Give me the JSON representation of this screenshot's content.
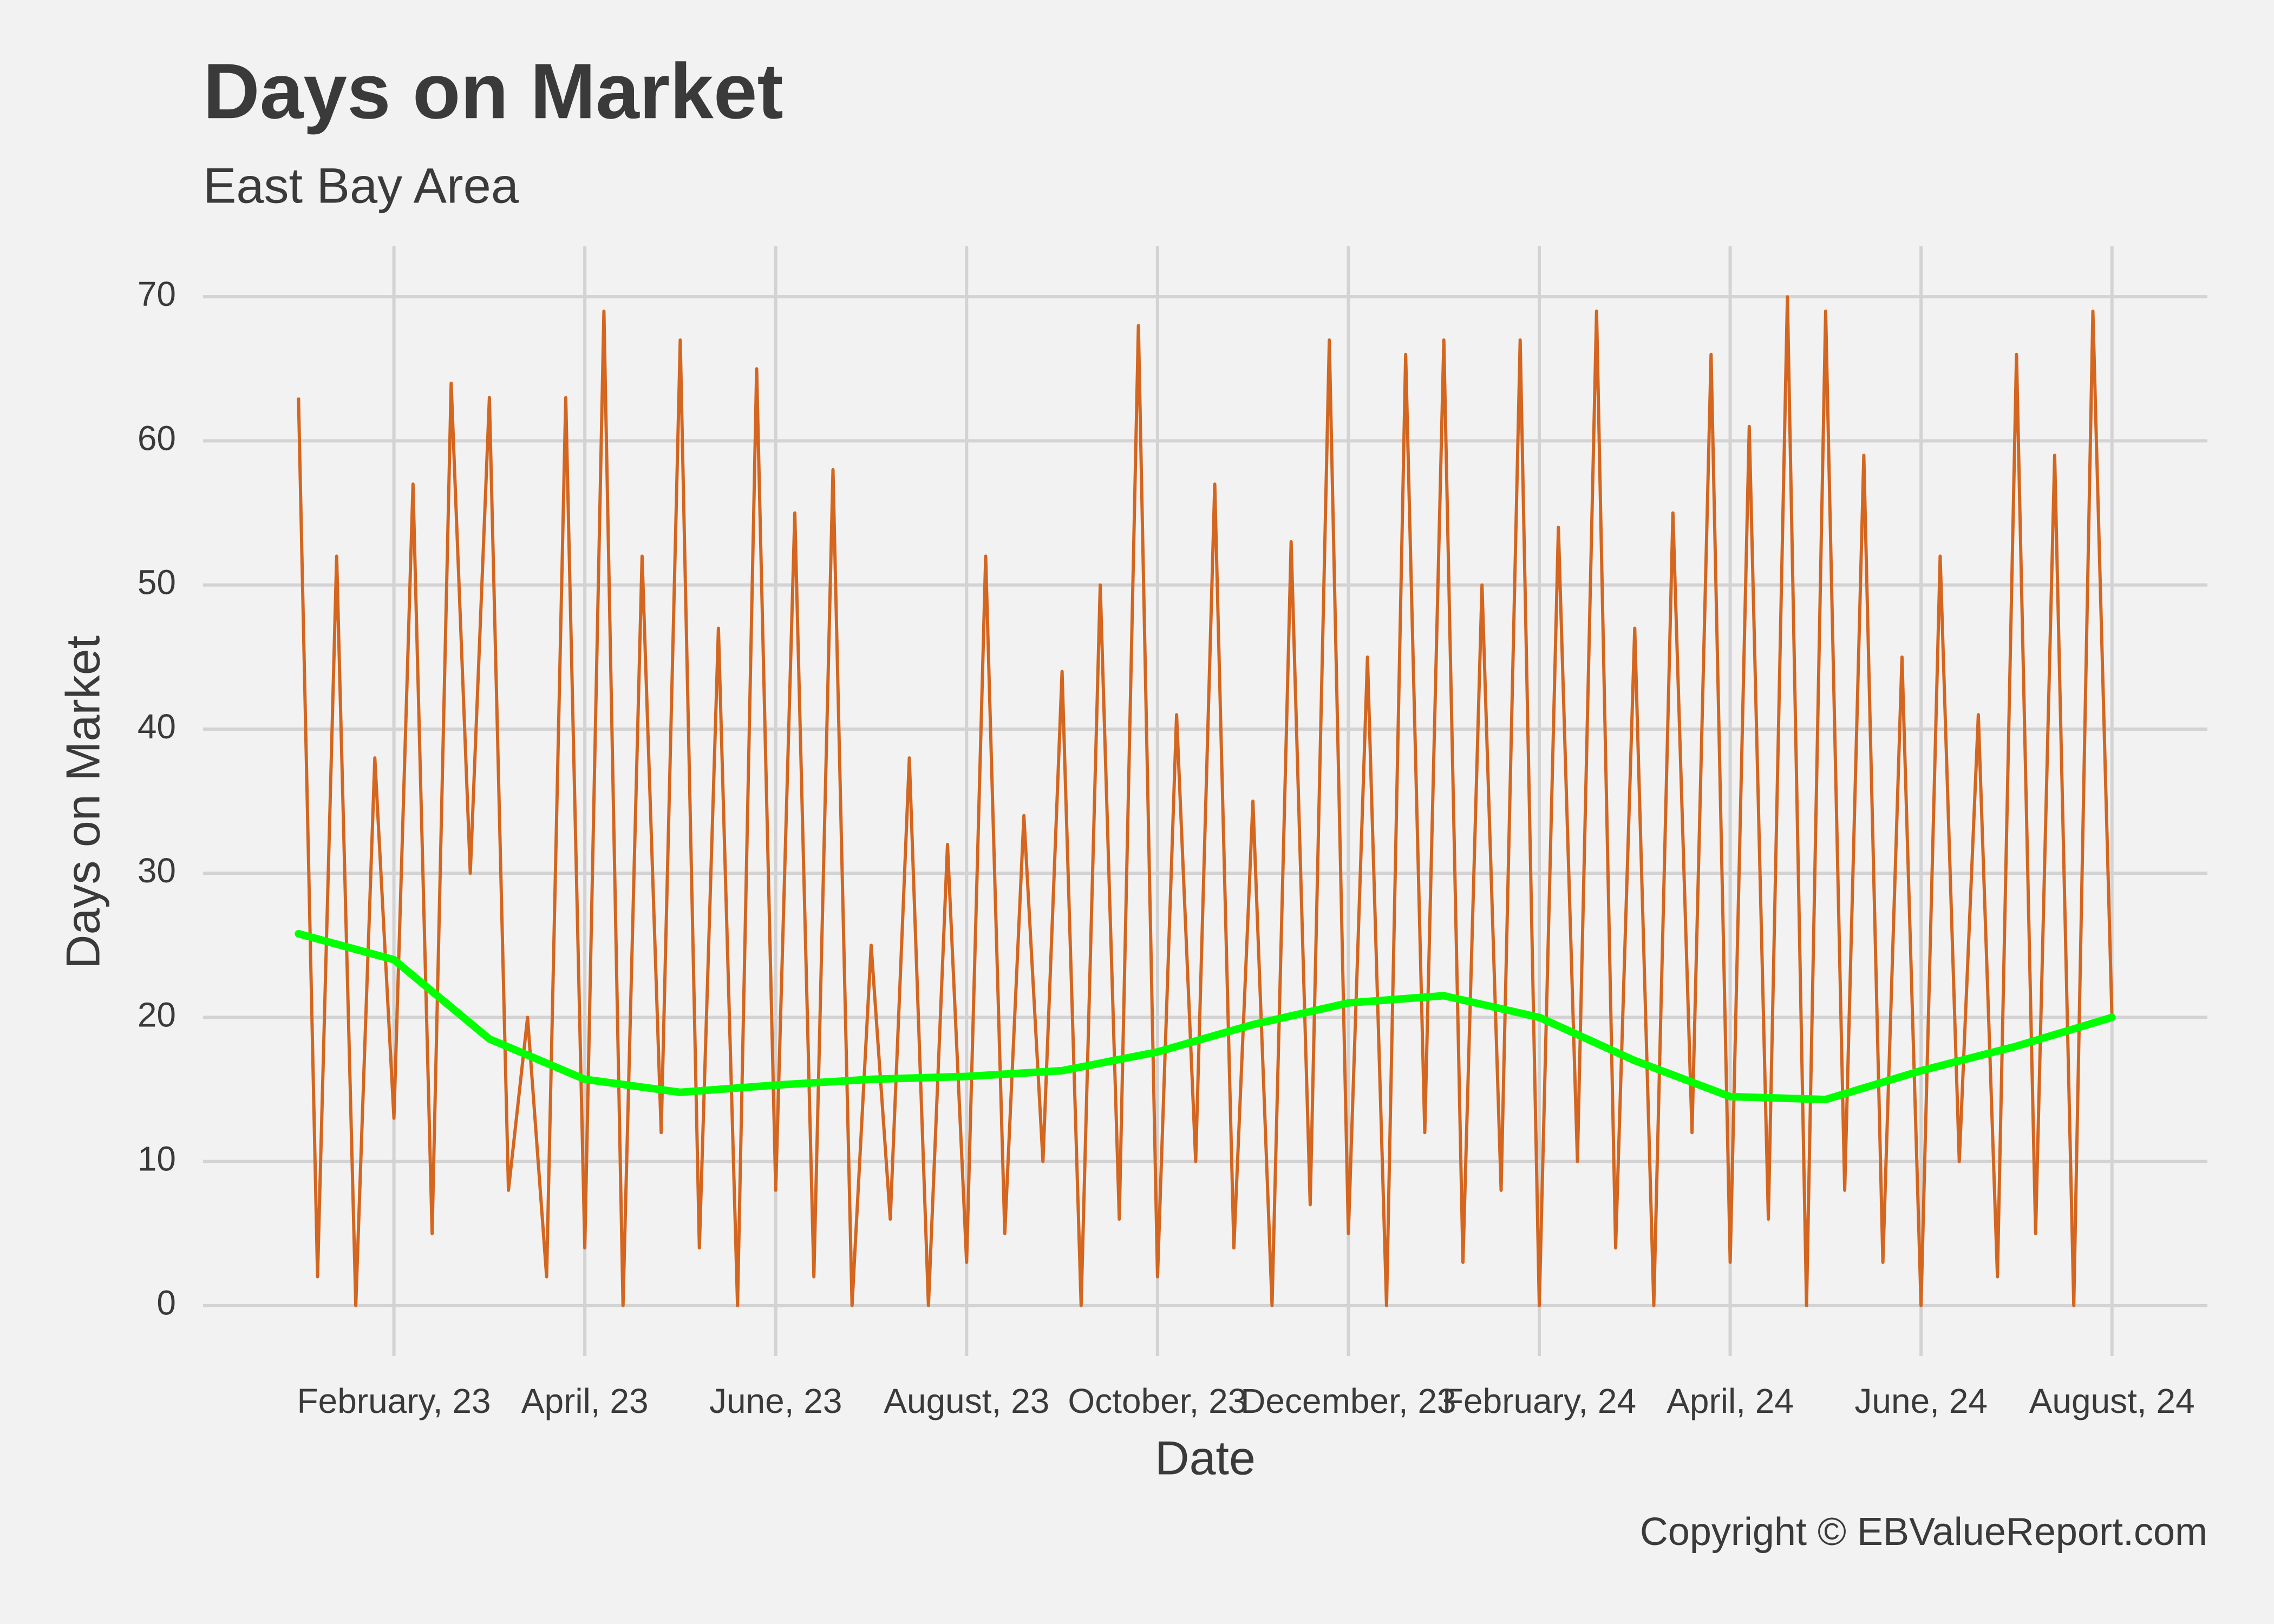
{
  "chart_data": {
    "type": "line",
    "title": "Days on Market",
    "subtitle": "East Bay Area",
    "x_label": "Date",
    "y_label": "Days on Market",
    "caption": "Copyright  © EBValueReport.com",
    "x": [
      1,
      1.2,
      1.4,
      1.6,
      1.8,
      2,
      2.2,
      2.4,
      2.6,
      2.8,
      3,
      3.2,
      3.4,
      3.6,
      3.8,
      4,
      4.2,
      4.4,
      4.6,
      4.8,
      5,
      5.2,
      5.4,
      5.6,
      5.8,
      6,
      6.2,
      6.4,
      6.6,
      6.8,
      7,
      7.2,
      7.4,
      7.6,
      7.8,
      8,
      8.2,
      8.4,
      8.6,
      8.8,
      9,
      9.2,
      9.4,
      9.6,
      9.8,
      10,
      10.2,
      10.4,
      10.6,
      10.8,
      11,
      11.2,
      11.4,
      11.6,
      11.8,
      12,
      12.2,
      12.4,
      12.6,
      12.8,
      13,
      13.2,
      13.4,
      13.6,
      13.8,
      14,
      14.2,
      14.4,
      14.6,
      14.8,
      15,
      15.2,
      15.4,
      15.6,
      15.8,
      16,
      16.2,
      16.4,
      16.6,
      16.8,
      17,
      17.2,
      17.4,
      17.6,
      17.8,
      18,
      18.2,
      18.4,
      18.6,
      18.8,
      19,
      19.2,
      19.4,
      19.6,
      19.8,
      20
    ],
    "values": [
      63,
      2,
      52,
      0,
      38,
      13,
      57,
      5,
      64,
      30,
      63,
      8,
      20,
      2,
      63,
      4,
      69,
      0,
      52,
      12,
      67,
      4,
      47,
      0,
      65,
      8,
      55,
      2,
      58,
      0,
      25,
      6,
      38,
      0,
      32,
      3,
      52,
      5,
      34,
      10,
      44,
      0,
      50,
      6,
      68,
      2,
      41,
      10,
      57,
      4,
      35,
      0,
      53,
      7,
      67,
      5,
      45,
      0,
      66,
      12,
      67,
      3,
      50,
      8,
      67,
      0,
      54,
      10,
      69,
      4,
      47,
      0,
      55,
      12,
      66,
      3,
      61,
      6,
      70,
      0,
      69,
      8,
      59,
      3,
      45,
      0,
      52,
      10,
      41,
      2,
      66,
      5,
      59,
      0,
      69,
      20
    ],
    "color": "#d4661f",
    "trend": {
      "x": [
        1,
        2,
        3,
        4,
        5,
        6,
        7,
        8,
        9,
        10,
        11,
        12,
        13,
        14,
        15,
        16,
        17,
        18,
        19,
        20
      ],
      "values": [
        25.8,
        24,
        18.5,
        15.7,
        14.8,
        15.3,
        15.7,
        15.9,
        16.3,
        17.6,
        19.5,
        21,
        21.5,
        20,
        17,
        14.5,
        14.3,
        16.3,
        18,
        20
      ],
      "color": "#00ff00"
    },
    "xlim": [
      0,
      21
    ],
    "xticks": [
      {
        "value": 2,
        "label": "February, 23"
      },
      {
        "value": 4,
        "label": "April, 23"
      },
      {
        "value": 6,
        "label": "June, 23"
      },
      {
        "value": 8,
        "label": "August, 23"
      },
      {
        "value": 10,
        "label": "October, 23"
      },
      {
        "value": 12,
        "label": "December, 23"
      },
      {
        "value": 14,
        "label": "February, 24"
      },
      {
        "value": 16,
        "label": "April, 24"
      },
      {
        "value": 18,
        "label": "June, 24"
      },
      {
        "value": 20,
        "label": "August, 24"
      }
    ],
    "ylim": [
      -3.5,
      73.5
    ],
    "yticks": [
      0,
      10,
      20,
      30,
      40,
      50,
      60,
      70
    ],
    "grid": true
  }
}
